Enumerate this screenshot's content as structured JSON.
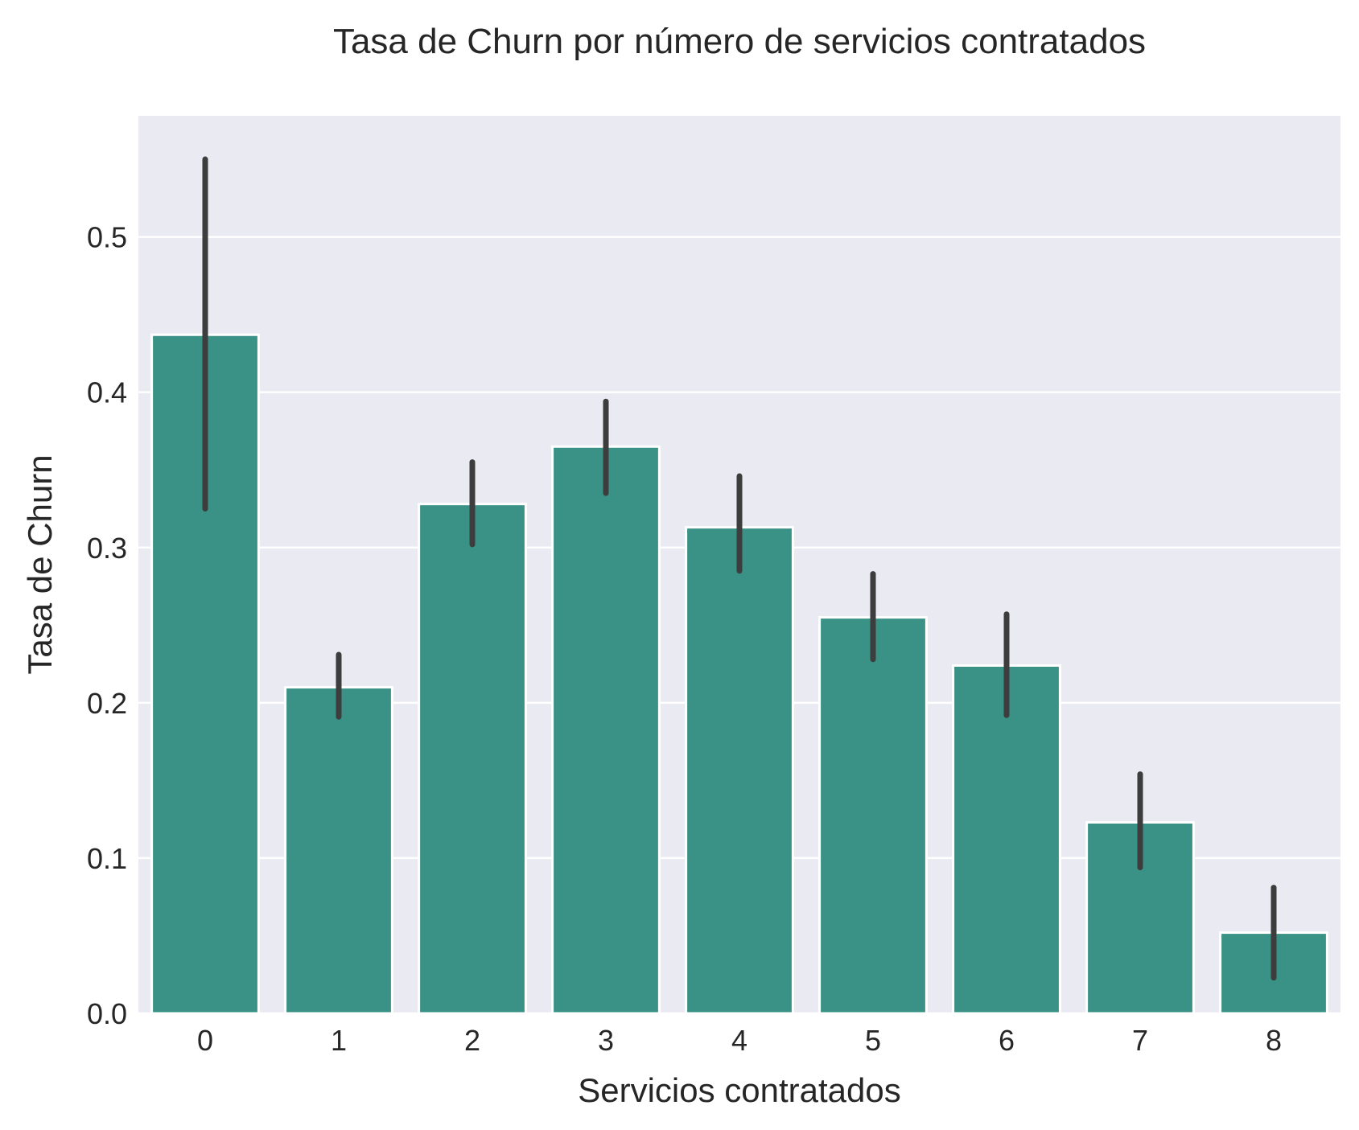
{
  "chart_data": {
    "type": "bar",
    "title": "Tasa de Churn por número de servicios contratados",
    "xlabel": "Servicios contratados",
    "ylabel": "Tasa de Churn",
    "categories": [
      "0",
      "1",
      "2",
      "3",
      "4",
      "5",
      "6",
      "7",
      "8"
    ],
    "values": [
      0.437,
      0.21,
      0.328,
      0.365,
      0.313,
      0.255,
      0.224,
      0.123,
      0.052
    ],
    "error_low": [
      0.325,
      0.191,
      0.302,
      0.335,
      0.285,
      0.228,
      0.192,
      0.094,
      0.023
    ],
    "error_high": [
      0.55,
      0.231,
      0.355,
      0.394,
      0.346,
      0.283,
      0.257,
      0.154,
      0.081
    ],
    "ylim": [
      0,
      0.578
    ],
    "yticks": [
      0.0,
      0.1,
      0.2,
      0.3,
      0.4,
      0.5
    ],
    "ytick_labels": [
      "0.0",
      "0.1",
      "0.2",
      "0.3",
      "0.4",
      "0.5"
    ],
    "grid": true,
    "colors": {
      "bar": "#3a9186",
      "error_bar": "#3d3d3d",
      "plot_background": "#eaeaf2",
      "grid": "#ffffff",
      "text": "#262626"
    }
  }
}
